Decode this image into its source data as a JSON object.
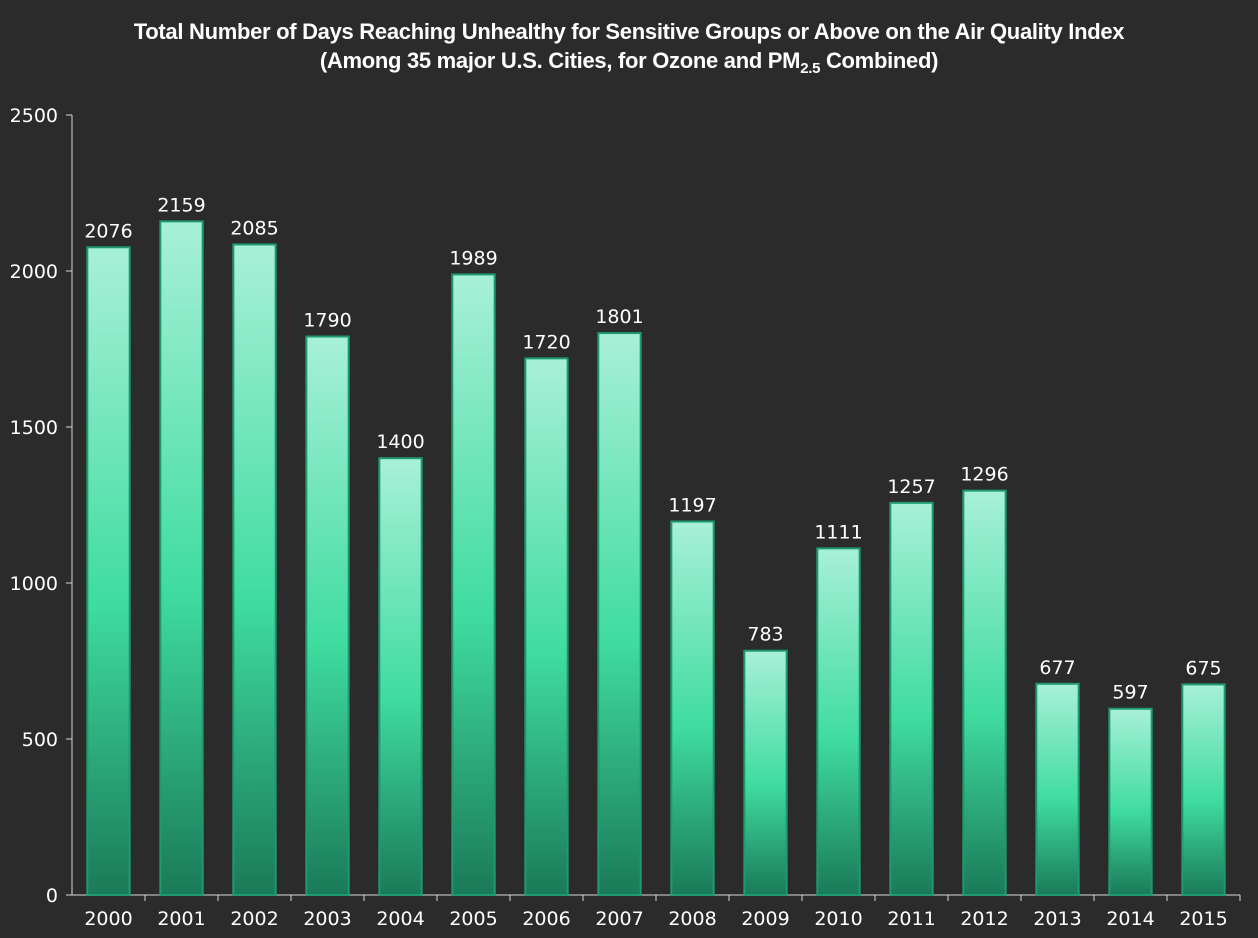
{
  "chart_data": {
    "type": "bar",
    "title": "Total Number of Days Reaching Unhealthy for Sensitive Groups or Above on the Air Quality Index",
    "subtitle_prefix": "(Among 35 major U.S. Cities, for Ozone and PM",
    "subtitle_subscript": "2.5",
    "subtitle_suffix": " Combined)",
    "xlabel": "",
    "ylabel": "",
    "ylim": [
      0,
      2500
    ],
    "yticks": [
      0,
      500,
      1000,
      1500,
      2000,
      2500
    ],
    "categories": [
      "2000",
      "2001",
      "2002",
      "2003",
      "2004",
      "2005",
      "2006",
      "2007",
      "2008",
      "2009",
      "2010",
      "2011",
      "2012",
      "2013",
      "2014",
      "2015"
    ],
    "values": [
      2076,
      2159,
      2085,
      1790,
      1400,
      1989,
      1720,
      1801,
      1197,
      783,
      1111,
      1257,
      1296,
      677,
      597,
      675
    ],
    "colors": {
      "background": "#2b2b2b",
      "bar_light": "#a8f0d8",
      "bar_mid": "#3fdca0",
      "bar_dark": "#1a7a58",
      "bar_border": "#1f9a70",
      "axis": "#d9d9d9",
      "text": "#ffffff"
    }
  }
}
